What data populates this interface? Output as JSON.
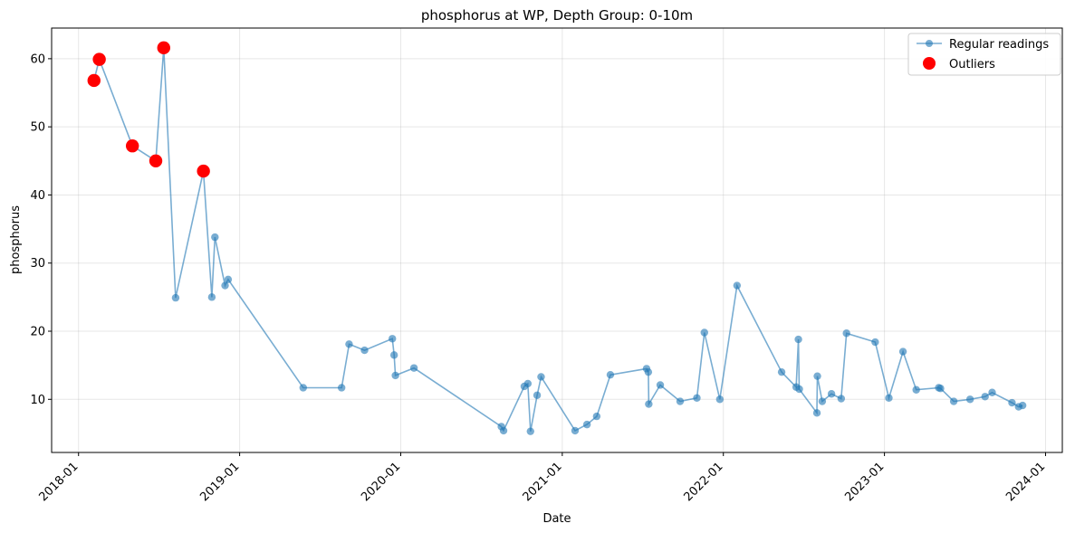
{
  "chart_data": {
    "type": "line",
    "title": "phosphorus at WP, Depth Group: 0-10m",
    "xlabel": "Date",
    "ylabel": "phosphorus",
    "xlim": [
      "2017-11-01",
      "2024-02-08"
    ],
    "ylim": [
      2.2,
      64.5
    ],
    "x_tick_labels": [
      "2018-01",
      "2019-01",
      "2020-01",
      "2021-01",
      "2022-01",
      "2023-01",
      "2024-01"
    ],
    "y_ticks": [
      10,
      20,
      30,
      40,
      50,
      60
    ],
    "grid": true,
    "legend_position": "top-right",
    "series": [
      {
        "name": "Regular readings",
        "color": "#1f77b4",
        "marker": "circle",
        "x": [
          "2018-02-05",
          "2018-02-17",
          "2018-05-03",
          "2018-06-25",
          "2018-07-13",
          "2018-08-09",
          "2018-10-11",
          "2018-10-30",
          "2018-11-06",
          "2018-11-29",
          "2018-12-06",
          "2019-05-25",
          "2019-08-20",
          "2019-09-06",
          "2019-10-11",
          "2019-12-13",
          "2019-12-17",
          "2019-12-20",
          "2020-01-31",
          "2020-08-16",
          "2020-08-21",
          "2020-10-07",
          "2020-10-15",
          "2020-10-21",
          "2020-11-05",
          "2020-11-14",
          "2021-01-30",
          "2021-02-26",
          "2021-03-20",
          "2021-04-20",
          "2021-07-11",
          "2021-07-15",
          "2021-07-16",
          "2021-08-11",
          "2021-09-25",
          "2021-11-02",
          "2021-11-19",
          "2021-12-24",
          "2022-02-01",
          "2022-05-13",
          "2022-06-15",
          "2022-06-20",
          "2022-06-22",
          "2022-08-01",
          "2022-08-02",
          "2022-08-13",
          "2022-09-03",
          "2022-09-25",
          "2022-10-07",
          "2022-12-11",
          "2023-01-11",
          "2023-02-12",
          "2023-03-14",
          "2023-05-04",
          "2023-05-08",
          "2023-06-07",
          "2023-07-14",
          "2023-08-17",
          "2023-09-02",
          "2023-10-17",
          "2023-11-01",
          "2023-11-10"
        ],
        "y": [
          56.8,
          59.9,
          47.2,
          45.0,
          61.6,
          24.9,
          43.5,
          25.0,
          33.8,
          26.7,
          27.6,
          11.7,
          11.7,
          18.1,
          17.2,
          18.9,
          16.5,
          13.5,
          14.6,
          6.0,
          5.4,
          11.9,
          12.3,
          5.3,
          10.6,
          13.3,
          5.4,
          6.3,
          7.5,
          13.6,
          14.5,
          14.0,
          9.3,
          12.1,
          9.7,
          10.2,
          19.8,
          10.0,
          26.7,
          14.0,
          11.8,
          18.8,
          11.5,
          8.0,
          13.4,
          9.7,
          10.8,
          10.1,
          19.7,
          18.4,
          10.2,
          17.0,
          11.4,
          11.7,
          11.6,
          9.7,
          10.0,
          10.4,
          11.0,
          9.5,
          8.9,
          9.1
        ]
      },
      {
        "name": "Outliers",
        "color": "#ff0000",
        "marker": "circle",
        "x": [
          "2018-02-05",
          "2018-02-17",
          "2018-05-03",
          "2018-06-25",
          "2018-07-13",
          "2018-10-11"
        ],
        "y": [
          56.8,
          59.9,
          47.2,
          45.0,
          61.6,
          43.5
        ]
      }
    ]
  }
}
